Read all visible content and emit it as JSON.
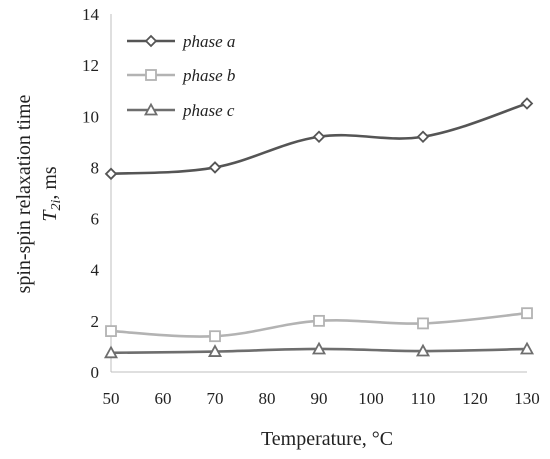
{
  "chart_data": {
    "type": "line",
    "title": "",
    "xlabel": "Temperature, °C",
    "ylabel": {
      "line1": "spin-spin relaxation time",
      "line2_symbol": "T",
      "line2_sub": "2i",
      "line2_rest": ", ms"
    },
    "x": [
      50,
      70,
      90,
      110,
      130
    ],
    "xticks": [
      "50",
      "60",
      "70",
      "80",
      "90",
      "100",
      "110",
      "120",
      "130"
    ],
    "yticks": [
      "0",
      "2",
      "4",
      "6",
      "8",
      "10",
      "12",
      "14"
    ],
    "xlim": [
      50,
      130
    ],
    "ylim": [
      0,
      14
    ],
    "grid": false,
    "legend_position": "top-left",
    "series": [
      {
        "name": "phase a",
        "values": [
          7.75,
          8.0,
          9.2,
          9.2,
          10.5
        ],
        "color": "#555555",
        "marker": "diamond"
      },
      {
        "name": "phase b",
        "values": [
          1.6,
          1.4,
          2.0,
          1.9,
          2.3
        ],
        "color": "#b3b3b3",
        "marker": "square"
      },
      {
        "name": "phase c",
        "values": [
          0.75,
          0.8,
          0.9,
          0.82,
          0.9
        ],
        "color": "#6e6e6e",
        "marker": "triangle"
      }
    ]
  }
}
